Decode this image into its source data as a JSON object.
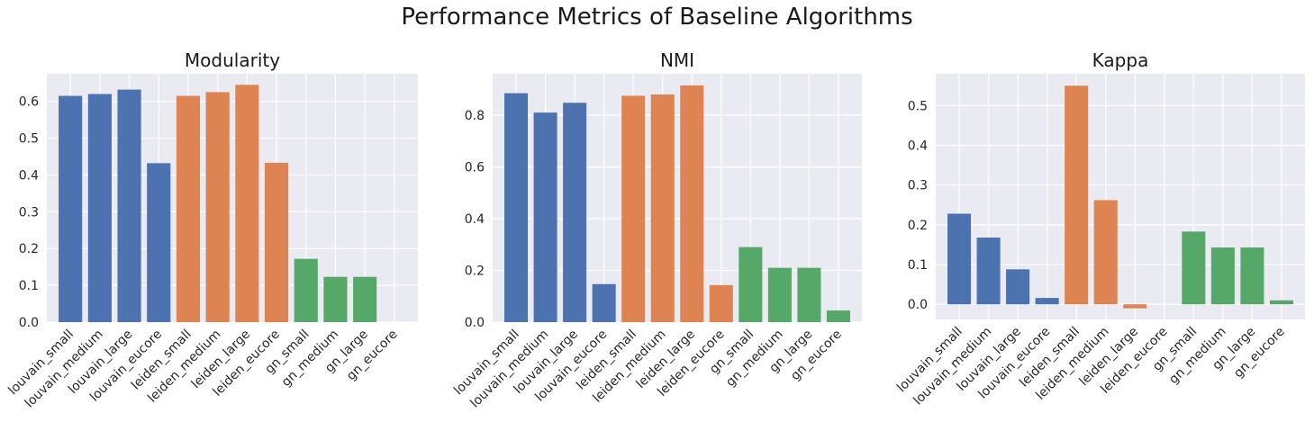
{
  "chart_data": {
    "title": "Performance Metrics of Baseline Algorithms",
    "type": "bar",
    "categories": [
      "louvain_small",
      "louvain_medium",
      "louvain_large",
      "louvain_eucore",
      "leiden_small",
      "leiden_medium",
      "leiden_large",
      "leiden_eucore",
      "gn_small",
      "gn_medium",
      "gn_large",
      "gn_eucore"
    ],
    "bar_colors": [
      "#4c72b0",
      "#4c72b0",
      "#4c72b0",
      "#4c72b0",
      "#dd8452",
      "#dd8452",
      "#dd8452",
      "#dd8452",
      "#55a868",
      "#55a868",
      "#55a868",
      "#55a868"
    ],
    "background_color": "#eaeaf2",
    "grid": true,
    "charts": [
      {
        "title": "Modularity",
        "values": [
          0.615,
          0.62,
          0.632,
          0.432,
          0.615,
          0.625,
          0.645,
          0.433,
          0.172,
          0.123,
          0.123,
          0.0
        ],
        "yticks": [
          0.0,
          0.1,
          0.2,
          0.3,
          0.4,
          0.5,
          0.6
        ],
        "ytick_labels": [
          "0.0",
          "0.1",
          "0.2",
          "0.3",
          "0.4",
          "0.5",
          "0.6"
        ]
      },
      {
        "title": "NMI",
        "values": [
          0.885,
          0.81,
          0.848,
          0.147,
          0.875,
          0.88,
          0.915,
          0.143,
          0.29,
          0.21,
          0.21,
          0.045
        ],
        "yticks": [
          0.0,
          0.2,
          0.4,
          0.6,
          0.8
        ],
        "ytick_labels": [
          "0.0",
          "0.2",
          "0.4",
          "0.6",
          "0.8"
        ]
      },
      {
        "title": "Kappa",
        "values": [
          0.228,
          0.168,
          0.088,
          0.016,
          0.55,
          0.262,
          -0.01,
          0.0,
          0.183,
          0.143,
          0.143,
          0.01
        ],
        "yticks": [
          0.0,
          0.1,
          0.2,
          0.3,
          0.4,
          0.5
        ],
        "ytick_labels": [
          "0.0",
          "0.1",
          "0.2",
          "0.3",
          "0.4",
          "0.5"
        ]
      }
    ]
  }
}
